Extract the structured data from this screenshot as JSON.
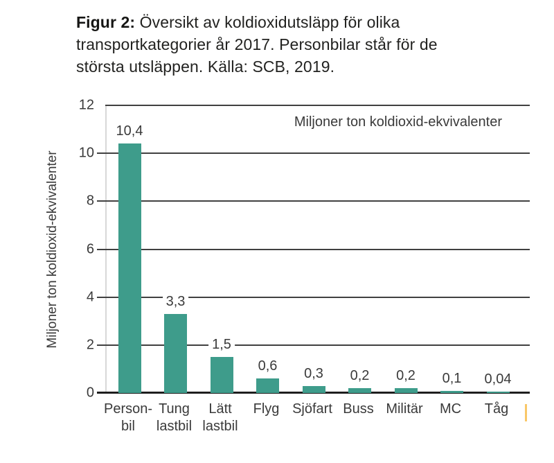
{
  "caption": {
    "prefix": "Figur 2:",
    "text": " Översikt av koldioxidutsläpp för olika transportkategorier år 2017. Personbilar står för de största utsläppen. Källa: SCB, 2019."
  },
  "chart_data": {
    "type": "bar",
    "title": "Figur 2: Översikt av koldioxidutsläpp för olika transportkategorier år 2017. Personbilar står för de största utsläppen. Källa: SCB, 2019.",
    "categories": [
      "Person-\nbil",
      "Tung\nlastbil",
      "Lätt\nlastbil",
      "Flyg",
      "Sjöfart",
      "Buss",
      "Militär",
      "MC",
      "Tåg"
    ],
    "values": [
      10.4,
      3.3,
      1.5,
      0.6,
      0.3,
      0.2,
      0.2,
      0.1,
      0.04
    ],
    "value_labels": [
      "10,4",
      "3,3",
      "1,5",
      "0,6",
      "0,3",
      "0,2",
      "0,2",
      "0,1",
      "0,04"
    ],
    "ylabel": "Miljoner ton koldioxid-ekvivalenter",
    "annotation": "Miljoner ton koldioxid-ekvivalenter",
    "xlabel": "",
    "yticks": [
      0,
      2,
      4,
      6,
      8,
      10,
      12
    ],
    "ylim": [
      0,
      12
    ],
    "grid": true,
    "legend": "none",
    "bar_color": "#3E9C8B",
    "gridline_color": "#404040",
    "baseline_color": "#1E1E1E",
    "axis_line_color": "#D8D8D8",
    "text_color": "#3A3A3A",
    "edge_mark_color": "#F9C768"
  }
}
